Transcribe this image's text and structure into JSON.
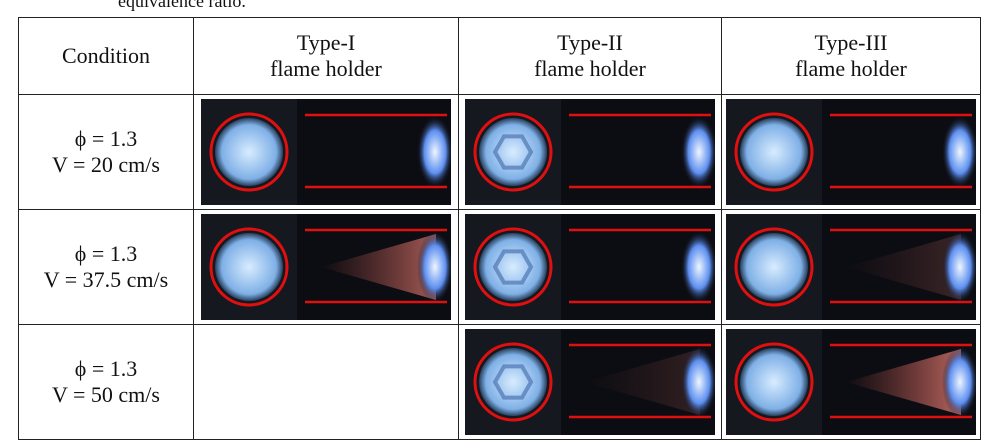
{
  "caption_fragment": "equivalence ratio.",
  "table": {
    "headers": [
      [
        "Condition"
      ],
      [
        "Type-I",
        "flame holder"
      ],
      [
        "Type-II",
        "flame holder"
      ],
      [
        "Type-III",
        "flame holder"
      ]
    ],
    "rows": [
      [
        "ϕ = 1.3",
        "V = 20 cm/s"
      ],
      [
        "ϕ = 1.3",
        "V = 37.5 cm/s"
      ],
      [
        "ϕ = 1.3",
        "V = 50 cm/s"
      ]
    ]
  }
}
